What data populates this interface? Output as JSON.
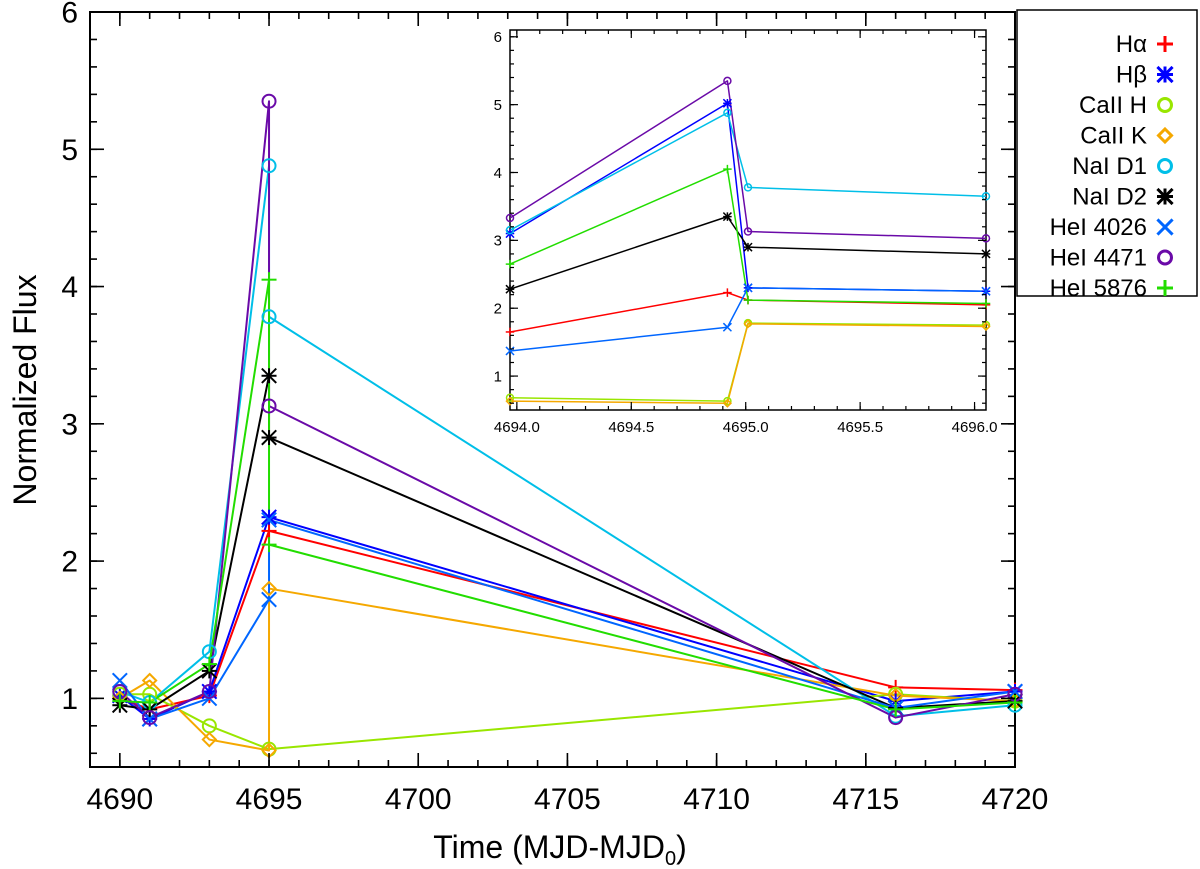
{
  "chart_data": [
    {
      "type": "line",
      "panel": "main",
      "xlabel": "Time (MJD-MJD",
      "xlabel_sub": "0",
      "xlabel_close": ")",
      "ylabel": "Normalized Flux",
      "xlim": [
        4689,
        4720
      ],
      "ylim": [
        0.5,
        6
      ],
      "xticks": [
        4690,
        4695,
        4700,
        4705,
        4710,
        4715,
        4720
      ],
      "yticks": [
        1,
        2,
        3,
        4,
        5,
        6
      ],
      "series": [
        {
          "name": "Hα",
          "color": "#ff0000",
          "marker": "plus",
          "points": [
            [
              4690,
              1.0
            ],
            [
              4691,
              0.92
            ],
            [
              4693,
              1.02
            ],
            [
              4695,
              2.22
            ],
            [
              4716,
              1.08
            ],
            [
              4720,
              1.06
            ]
          ]
        },
        {
          "name": "Hβ",
          "color": "#0000ff",
          "marker": "asterisk",
          "points": [
            [
              4690,
              1.02
            ],
            [
              4691,
              0.85
            ],
            [
              4693,
              1.05
            ],
            [
              4695,
              2.32
            ],
            [
              4716,
              0.98
            ],
            [
              4720,
              1.05
            ]
          ]
        },
        {
          "name": "CaII H",
          "color": "#99e600",
          "marker": "circle",
          "points": [
            [
              4690,
              1.03
            ],
            [
              4691,
              1.03
            ],
            [
              4693,
              0.8
            ],
            [
              4695,
              0.63
            ],
            [
              4716,
              1.03
            ],
            [
              4720,
              0.98
            ]
          ]
        },
        {
          "name": "CaII K",
          "color": "#f5a800",
          "marker": "diamond",
          "points": [
            [
              4690,
              1.0
            ],
            [
              4691,
              1.13
            ],
            [
              4693,
              0.7
            ],
            [
              4695,
              0.62
            ],
            [
              4695,
              1.8
            ],
            [
              4716,
              1.02
            ],
            [
              4720,
              0.98
            ]
          ]
        },
        {
          "name": "NaI D1",
          "color": "#00bfe8",
          "marker": "circle",
          "points": [
            [
              4690,
              1.05
            ],
            [
              4691,
              0.97
            ],
            [
              4693,
              1.34
            ],
            [
              4695,
              4.88
            ],
            [
              4695,
              3.78
            ],
            [
              4716,
              0.87
            ],
            [
              4720,
              0.95
            ]
          ]
        },
        {
          "name": "NaI D2",
          "color": "#000000",
          "marker": "asterisk",
          "points": [
            [
              4690,
              0.95
            ],
            [
              4691,
              0.92
            ],
            [
              4693,
              1.2
            ],
            [
              4695,
              3.35
            ],
            [
              4695,
              2.9
            ],
            [
              4716,
              0.93
            ],
            [
              4720,
              0.98
            ]
          ]
        },
        {
          "name": "HeI 4026",
          "color": "#0066ff",
          "marker": "x",
          "points": [
            [
              4690,
              1.13
            ],
            [
              4691,
              0.85
            ],
            [
              4693,
              1.0
            ],
            [
              4695,
              1.72
            ],
            [
              4695,
              2.3
            ],
            [
              4716,
              0.93
            ],
            [
              4720,
              1.05
            ]
          ]
        },
        {
          "name": "HeI 4471",
          "color": "#6a0aa8",
          "marker": "circle",
          "points": [
            [
              4690,
              1.05
            ],
            [
              4691,
              0.86
            ],
            [
              4693,
              1.05
            ],
            [
              4695,
              5.35
            ],
            [
              4695,
              3.13
            ],
            [
              4716,
              0.86
            ],
            [
              4720,
              1.03
            ]
          ]
        },
        {
          "name": "HeI 5876",
          "color": "#22dd00",
          "marker": "plus",
          "points": [
            [
              4690,
              0.98
            ],
            [
              4691,
              0.97
            ],
            [
              4693,
              1.25
            ],
            [
              4695,
              4.05
            ],
            [
              4695,
              2.12
            ],
            [
              4716,
              0.92
            ],
            [
              4720,
              0.97
            ]
          ]
        }
      ]
    },
    {
      "type": "line",
      "panel": "inset",
      "xlim": [
        4693.97,
        4696.05
      ],
      "ylim": [
        0.5,
        6.1
      ],
      "xticks": [
        4694.0,
        4694.5,
        4695.0,
        4695.5,
        4696.0
      ],
      "xtick_labels": [
        "4694.0",
        "4694.5",
        "4695.0",
        "4695.5",
        "4696.0"
      ],
      "yticks": [
        1,
        2,
        3,
        4,
        5,
        6
      ],
      "series": [
        {
          "name": "Hα",
          "color": "#ff0000",
          "marker": "plus",
          "points": [
            [
              4693.97,
              1.65
            ],
            [
              4694.92,
              2.23
            ],
            [
              4695.01,
              2.12
            ],
            [
              4696.05,
              2.05
            ]
          ]
        },
        {
          "name": "Hβ",
          "color": "#0000ff",
          "marker": "asterisk",
          "points": [
            [
              4693.97,
              3.1
            ],
            [
              4694.92,
              5.02
            ],
            [
              4695.01,
              2.3
            ],
            [
              4696.05,
              2.25
            ]
          ]
        },
        {
          "name": "CaII H",
          "color": "#99e600",
          "marker": "circle",
          "points": [
            [
              4693.97,
              0.68
            ],
            [
              4694.92,
              0.63
            ],
            [
              4695.01,
              1.78
            ],
            [
              4696.05,
              1.75
            ]
          ]
        },
        {
          "name": "CaII K",
          "color": "#f5a800",
          "marker": "diamond",
          "points": [
            [
              4693.97,
              0.63
            ],
            [
              4694.92,
              0.6
            ],
            [
              4695.01,
              1.77
            ],
            [
              4696.05,
              1.73
            ]
          ]
        },
        {
          "name": "NaI D1",
          "color": "#00bfe8",
          "marker": "circle",
          "points": [
            [
              4693.97,
              3.15
            ],
            [
              4694.92,
              4.88
            ],
            [
              4695.01,
              3.78
            ],
            [
              4696.05,
              3.65
            ]
          ]
        },
        {
          "name": "NaI D2",
          "color": "#000000",
          "marker": "asterisk",
          "points": [
            [
              4693.97,
              2.28
            ],
            [
              4694.92,
              3.35
            ],
            [
              4695.01,
              2.9
            ],
            [
              4696.05,
              2.8
            ]
          ]
        },
        {
          "name": "HeI 4026",
          "color": "#0066ff",
          "marker": "x",
          "points": [
            [
              4693.97,
              1.37
            ],
            [
              4694.92,
              1.72
            ],
            [
              4695.01,
              2.3
            ],
            [
              4696.05,
              2.25
            ]
          ]
        },
        {
          "name": "HeI 4471",
          "color": "#6a0aa8",
          "marker": "circle",
          "points": [
            [
              4693.97,
              3.33
            ],
            [
              4694.92,
              5.35
            ],
            [
              4695.01,
              3.13
            ],
            [
              4696.05,
              3.03
            ]
          ]
        },
        {
          "name": "HeI 5876",
          "color": "#22dd00",
          "marker": "plus",
          "points": [
            [
              4693.97,
              2.65
            ],
            [
              4694.92,
              4.05
            ],
            [
              4695.01,
              2.12
            ],
            [
              4696.05,
              2.07
            ]
          ]
        }
      ]
    }
  ],
  "legend": {
    "placement": "top-right, outside plot",
    "items": [
      {
        "label": "Hα",
        "color": "#ff0000",
        "marker": "plus"
      },
      {
        "label": "Hβ",
        "color": "#0000ff",
        "marker": "asterisk"
      },
      {
        "label": "CaII H",
        "color": "#99e600",
        "marker": "circle"
      },
      {
        "label": "CaII K",
        "color": "#f5a800",
        "marker": "diamond"
      },
      {
        "label": "NaI D1",
        "color": "#00bfe8",
        "marker": "circle"
      },
      {
        "label": "NaI D2",
        "color": "#000000",
        "marker": "asterisk"
      },
      {
        "label": "HeI 4026",
        "color": "#0066ff",
        "marker": "x"
      },
      {
        "label": "HeI 4471",
        "color": "#6a0aa8",
        "marker": "circle"
      },
      {
        "label": "HeI 5876",
        "color": "#22dd00",
        "marker": "plus"
      }
    ]
  }
}
